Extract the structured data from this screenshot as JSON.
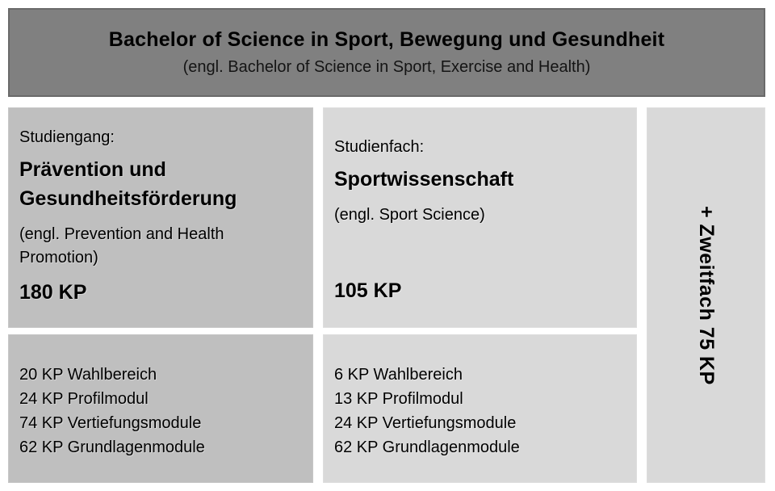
{
  "header": {
    "title": "Bachelor of Science in Sport, Bewegung und Gesundheit",
    "subtitle": "(engl. Bachelor of Science in Sport, Exercise and Health)"
  },
  "studiengang": {
    "label": "Studiengang:",
    "name": "Prävention und Gesundheitsförderung",
    "name_en": "(engl. Prevention and Health Promotion)",
    "credits": "180 KP",
    "modules": [
      "20 KP Wahlbereich",
      "24 KP Profilmodul",
      "74 KP Vertiefungsmodule",
      "62 KP Grundlagenmodule"
    ]
  },
  "studienfach": {
    "label": "Studienfach:",
    "name": "Sportwissenschaft",
    "name_en": "(engl. Sport Science)",
    "credits": "105 KP",
    "modules": [
      "6 KP Wahlbereich",
      "13 KP Profilmodul",
      "24 KP Vertiefungsmodule",
      "62 KP Grundlagenmodule"
    ]
  },
  "zweitfach": {
    "label": "+ Zweitfach 75 KP"
  },
  "colors": {
    "header_bg": "#808080",
    "left_box_bg": "#bfbfbf",
    "light_box_bg": "#d9d9d9",
    "text": "#000000"
  }
}
